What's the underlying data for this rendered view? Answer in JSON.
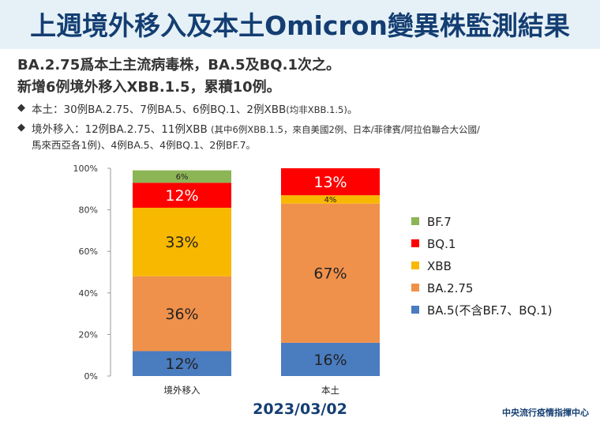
{
  "title": "上週境外移入及本土Omicron變異株監測結果",
  "summary": {
    "line1": "BA.2.75爲本土主流病毒株，BA.5及BQ.1次之。",
    "line2": "新增6例境外移入XBB.1.5，累積10例。"
  },
  "bullets": [
    {
      "marker": "◆",
      "lead": "本土：30例BA.2.75、7例BA.5、6例BQ.1、2例XBB",
      "note": "(均非XBB.1.5)",
      "tail": "。"
    },
    {
      "marker": "◆",
      "lead": "境外移入：12例BA.2.75、11例XBB",
      "note": "(其中6例XBB.1.5，來自美國2例、日本/菲律賓/阿拉伯聯合大公國/",
      "line2": "馬來西亞各1例)、4例BA.5、4例BQ.1、2例BF.7。"
    }
  ],
  "chart_data": {
    "type": "bar",
    "stacked": true,
    "categories": [
      "境外移入",
      "本土"
    ],
    "yticks": [
      "0%",
      "20%",
      "40%",
      "60%",
      "80%",
      "100%"
    ],
    "ylim": [
      0,
      100
    ],
    "series": [
      {
        "name": "BA.5(不含BF.7、BQ.1)",
        "color": "#4a7cc0",
        "values": [
          12,
          16
        ],
        "labels": [
          "12%",
          "16%"
        ],
        "label_size": [
          "big",
          "big"
        ],
        "label_color": [
          "#222222",
          "#222222"
        ]
      },
      {
        "name": "BA.2.75",
        "color": "#f0914b",
        "values": [
          36,
          67
        ],
        "labels": [
          "36%",
          "67%"
        ],
        "label_size": [
          "big",
          "big"
        ],
        "label_color": [
          "#222222",
          "#222222"
        ]
      },
      {
        "name": "XBB",
        "color": "#f9b800",
        "values": [
          33,
          4
        ],
        "labels": [
          "33%",
          "4%"
        ],
        "label_size": [
          "big",
          "small"
        ],
        "label_color": [
          "#222222",
          "#222222"
        ]
      },
      {
        "name": "BQ.1",
        "color": "#ff0000",
        "values": [
          12,
          13
        ],
        "labels": [
          "12%",
          "13%"
        ],
        "label_size": [
          "big",
          "big"
        ],
        "label_color": [
          "#ffffff",
          "#ffffff"
        ]
      },
      {
        "name": "BF.7",
        "color": "#8cb556",
        "values": [
          6,
          0
        ],
        "labels": [
          "6%",
          ""
        ],
        "label_size": [
          "small",
          "small"
        ],
        "label_color": [
          "#222222",
          "#222222"
        ]
      }
    ],
    "legend_order": [
      "BF.7",
      "BQ.1",
      "XBB",
      "BA.2.75",
      "BA.5(不含BF.7、BQ.1)"
    ],
    "legend_position": "right",
    "grid": false
  },
  "footer": {
    "date": "2023/03/02",
    "source": "中央流行疫情指揮中心"
  }
}
